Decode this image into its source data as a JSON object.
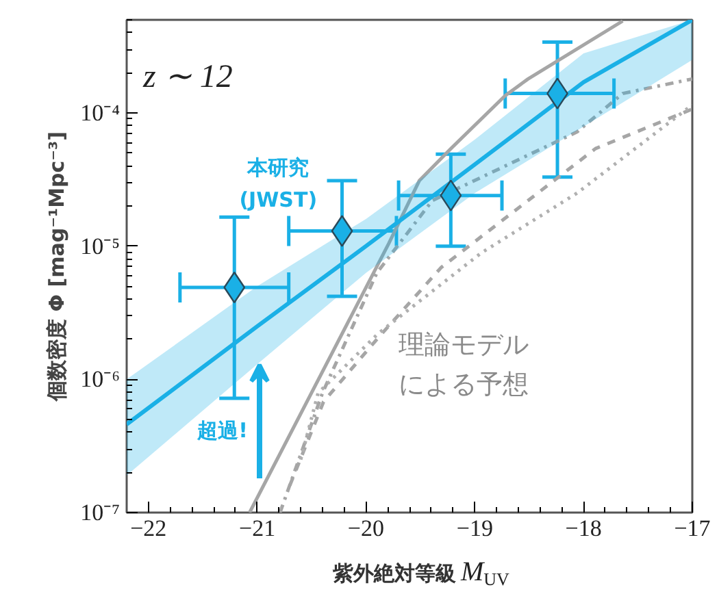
{
  "chart_data": {
    "type": "line",
    "xlabel": "紫外絶対等級 M$_{UV}$",
    "ylabel": "個数密度 Φ [mag⁻¹Mpc⁻³]",
    "xlim": [
      -22.2,
      -17
    ],
    "ylim": [
      1e-07,
      0.0005
    ],
    "log": "y",
    "xticks": [
      -22,
      -21,
      -20,
      -19,
      -18,
      -17
    ],
    "yticks": [
      {
        "value": 1e-07,
        "label": "10⁻⁷"
      },
      {
        "value": 1e-06,
        "label": "10⁻⁶"
      },
      {
        "value": 1e-05,
        "label": "10⁻⁵"
      },
      {
        "value": 0.0001,
        "label": "10⁻⁴"
      }
    ],
    "grid": false,
    "annotations": [
      "z ∼ 12",
      "理論モデルによる予想",
      "超過!"
    ],
    "series": [
      {
        "line_style": "solid",
        "color": "#a6a6a6",
        "x": [
          -21.07,
          -19.79,
          -19.51,
          -19.22,
          -18.72,
          -18.51,
          -17.64
        ],
        "values": [
          1e-07,
          1.05e-05,
          3.1e-05,
          5.4e-05,
          0.000135,
          0.00018,
          0.00049
        ]
      },
      {
        "line_style": "dashdot",
        "color": "#a6a6a6",
        "x": [
          -20.79,
          -20.4,
          -19.9,
          -19.39,
          -18.06,
          -17.64,
          -17.0
        ],
        "values": [
          1e-07,
          7.9e-07,
          6.3e-06,
          2.2e-05,
          7.2e-05,
          0.00014,
          0.00018
        ]
      },
      {
        "line_style": "dashed",
        "color": "#a6a6a6",
        "x": [
          -20.7,
          -20.39,
          -19.9,
          -19.31,
          -17.89,
          -17.0
        ],
        "values": [
          1.6e-07,
          6.8e-07,
          2e-06,
          6.9e-06,
          5.4e-05,
          0.000107
        ]
      },
      {
        "line_style": "dotted",
        "color": "#b0b0b0",
        "x": [
          -20.6,
          -20.44,
          -19.89,
          -18.94,
          -18.06,
          -17.0
        ],
        "values": [
          2.5e-07,
          7.9e-07,
          2.2e-06,
          8.9e-06,
          2.5e-05,
          0.000115
        ]
      },
      {
        "line_style": "solid",
        "color": "#1ab0e6",
        "x": [
          -22.2,
          -21,
          -20,
          -19,
          -18,
          -17
        ],
        "values": [
          4.6e-07,
          2.5e-06,
          1e-05,
          4.1e-05,
          0.00017,
          0.0005
        ],
        "lower": [
          1.9e-07,
          1.3e-06,
          6.3e-06,
          2.5e-05,
          7.9e-05,
          0.00025
        ],
        "upper": [
          1e-06,
          5e-06,
          1.6e-05,
          6.3e-05,
          0.00028,
          0.0005
        ]
      },
      {
        "type": "scatter",
        "name": "本研究\n(JWST)",
        "marker": "diamond",
        "color": "#1ab0e6",
        "x": [
          -21.21,
          -20.22,
          -19.22,
          -18.24
        ],
        "values": [
          4.9e-06,
          1.3e-05,
          2.4e-05,
          0.00014
        ],
        "errors": [
          [
            7.2e-07,
            1.65e-05
          ],
          [
            4.2e-06,
            3.1e-05
          ],
          [
            1e-05,
            4.9e-05
          ],
          [
            3.3e-05,
            0.00034
          ]
        ],
        "xerrors": [
          [
            -21.71,
            -20.71
          ],
          [
            -20.71,
            -19.72
          ],
          [
            -19.7,
            -18.75
          ],
          [
            -18.72,
            -17.72
          ]
        ]
      }
    ]
  }
}
